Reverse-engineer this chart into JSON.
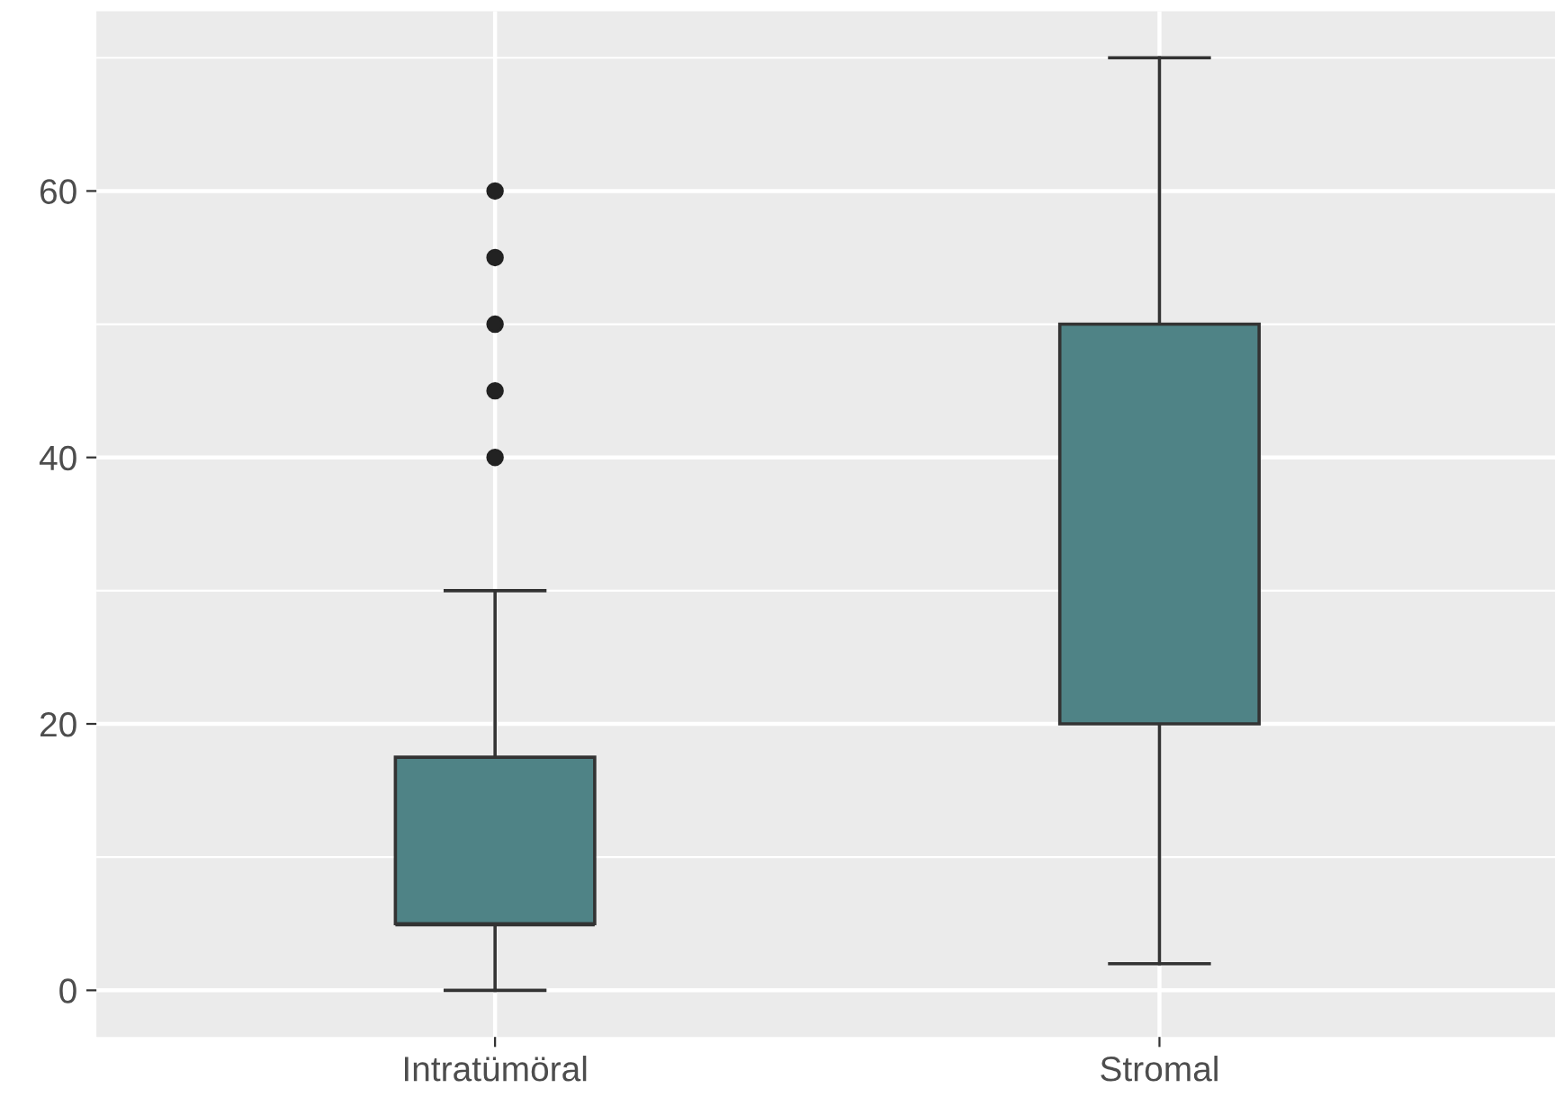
{
  "chart_data": {
    "type": "box",
    "categories": [
      "Intratümöral",
      "Stromal"
    ],
    "boxes": [
      {
        "low": 0,
        "q1": 5,
        "median": 5,
        "q3": 17.5,
        "high": 30,
        "outliers": [
          40,
          45,
          50,
          55,
          60
        ]
      },
      {
        "low": 2,
        "q1": 20,
        "median": 30,
        "q3": 50,
        "high": 70
      }
    ],
    "color": "#4f8386",
    "ylim": [
      -3.5,
      73.5
    ],
    "yticks": [
      0,
      20,
      40,
      60
    ],
    "grid": true
  }
}
